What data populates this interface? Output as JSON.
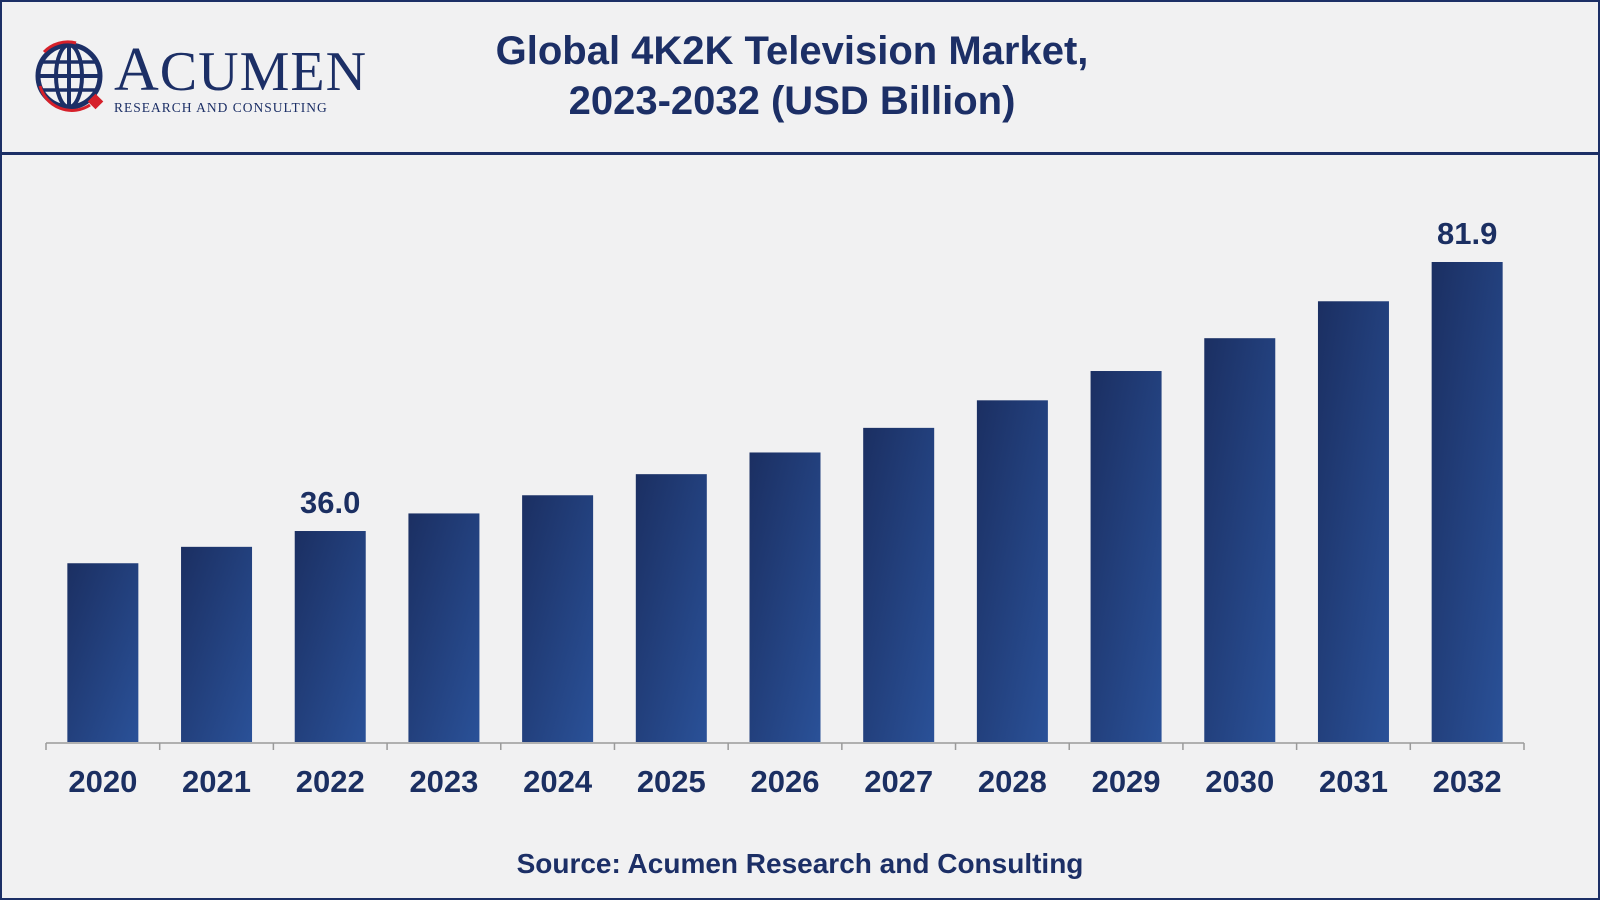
{
  "header": {
    "title_line1": "Global 4K2K Television Market,",
    "title_line2": "2023-2032 (USD Billion)"
  },
  "logo": {
    "word": "Acumen",
    "subtitle": "RESEARCH AND CONSULTING",
    "icon": "globe-icon"
  },
  "colors": {
    "brand": "#1c2f66",
    "bar_dark": "#1b2f62",
    "bar_light": "#2a5198",
    "background": "#f1f1f2"
  },
  "chart_data": {
    "type": "bar",
    "title": "Global 4K2K Television Market, 2023-2032 (USD Billion)",
    "xlabel": "",
    "ylabel": "",
    "categories": [
      "2020",
      "2021",
      "2022",
      "2023",
      "2024",
      "2025",
      "2026",
      "2027",
      "2028",
      "2029",
      "2030",
      "2031",
      "2032"
    ],
    "values": [
      30.5,
      33.3,
      36.0,
      39.0,
      42.1,
      45.7,
      49.4,
      53.6,
      58.3,
      63.3,
      68.9,
      75.2,
      81.9
    ],
    "data_labels": [
      {
        "category": "2022",
        "text": "36.0"
      },
      {
        "category": "2032",
        "text": "81.9"
      }
    ],
    "ylim": [
      0,
      81.9
    ],
    "grid": false,
    "legend": "none"
  },
  "source": "Source: Acumen Research and Consulting"
}
